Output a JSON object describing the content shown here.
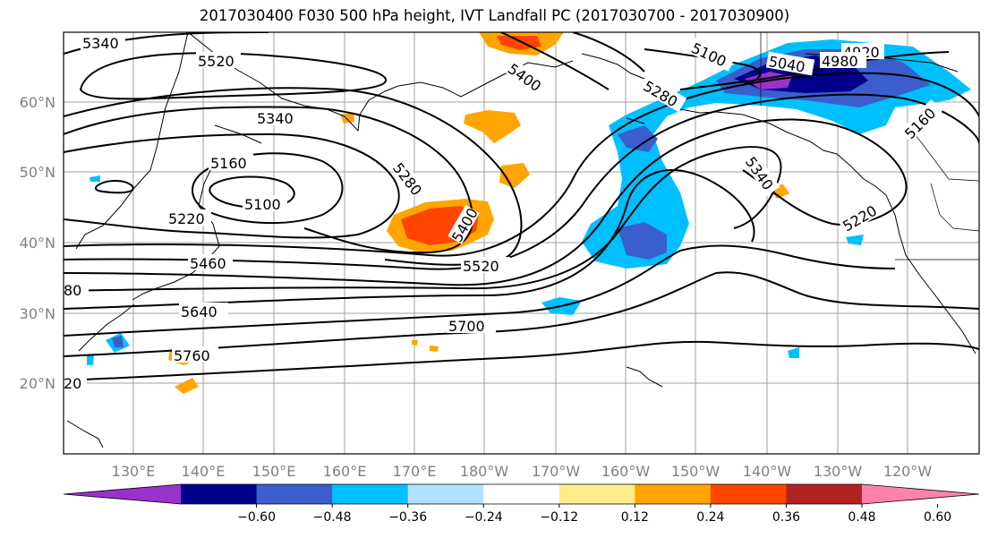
{
  "title": "2017030400 F030 500 hPa height, IVT Landfall PC (2017030700 - 2017030900)",
  "map": {
    "lat_labels": [
      "60°N",
      "50°N",
      "40°N",
      "30°N",
      "20°N"
    ],
    "lon_labels": [
      "130°E",
      "140°E",
      "150°E",
      "160°E",
      "170°E",
      "180°W",
      "170°W",
      "160°W",
      "150°W",
      "140°W",
      "130°W",
      "120°W"
    ],
    "contour_labels": [
      "5340",
      "5520",
      "5340",
      "5160",
      "5100",
      "5220",
      "5460",
      "80",
      "5640",
      "5760",
      "20",
      "5280",
      "5400",
      "5400",
      "5520",
      "5700",
      "5100",
      "5280",
      "5040",
      "4920",
      "4980",
      "5340",
      "5160",
      "5220"
    ]
  },
  "colorbar": {
    "ticks": [
      "−0.60",
      "−0.48",
      "−0.36",
      "−0.24",
      "−0.12",
      "0.12",
      "0.24",
      "0.36",
      "0.48",
      "0.60"
    ],
    "colors": [
      "#9932cc",
      "#00008b",
      "#3a5fcd",
      "#00bfff",
      "#b0e2ff",
      "#ffffff",
      "#ffec8b",
      "#ffa500",
      "#ff4500",
      "#b22222",
      "#ff82ab"
    ]
  }
}
